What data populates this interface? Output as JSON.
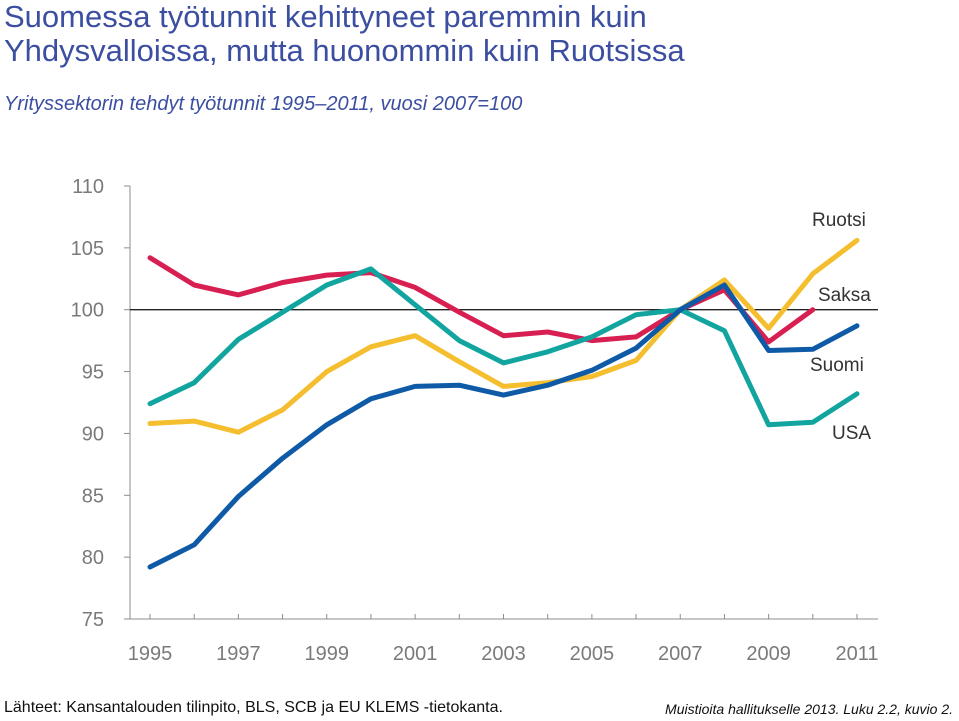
{
  "title_line1": "Suomessa työtunnit kehittyneet paremmin kuin",
  "title_line2": "Yhdysvalloissa, mutta huonommin kuin Ruotsissa",
  "subtitle": "Yrityssektorin tehdyt työtunnit 1995–2011, vuosi 2007=100",
  "source": "Lähteet: Kansantalouden tilinpito, BLS, SCB ja EU KLEMS -tietokanta.",
  "note": "Muistioita hallitukselle 2013. Luku 2.2, kuvio 2.",
  "chart_data": {
    "type": "line",
    "title": "Suomessa työtunnit kehittyneet paremmin kuin Yhdysvalloissa, mutta huonommin kuin Ruotsissa",
    "subtitle": "Yrityssektorin tehdyt työtunnit 1995–2011, vuosi 2007=100",
    "x": [
      1995,
      1996,
      1997,
      1998,
      1999,
      2000,
      2001,
      2002,
      2003,
      2004,
      2005,
      2006,
      2007,
      2008,
      2009,
      2010,
      2011
    ],
    "x_tick_labels": [
      "1995",
      "1997",
      "1999",
      "2001",
      "2003",
      "2005",
      "2007",
      "2009",
      "2011"
    ],
    "ylim": [
      75,
      110
    ],
    "y_ticks": [
      "75",
      "80",
      "85",
      "90",
      "95",
      "100",
      "105",
      "110"
    ],
    "reference_line": 100,
    "grid": false,
    "legend": "inline labels at right",
    "series": [
      {
        "name": "Ruotsi",
        "color": "#f5be2e",
        "values": [
          90.8,
          91.0,
          90.1,
          91.9,
          95.0,
          97.0,
          97.9,
          95.8,
          93.8,
          94.1,
          94.6,
          95.9,
          100.0,
          102.4,
          98.5,
          102.9,
          105.6
        ]
      },
      {
        "name": "Saksa",
        "color": "#d71f52",
        "values": [
          104.2,
          102.0,
          101.2,
          102.2,
          102.8,
          103.0,
          101.8,
          99.8,
          97.9,
          98.2,
          97.5,
          97.8,
          100.0,
          101.6,
          97.4,
          100.0,
          null
        ]
      },
      {
        "name": "Suomi",
        "color": "#12a5a0",
        "values": [
          92.4,
          94.1,
          97.6,
          99.8,
          102.0,
          103.3,
          100.4,
          97.5,
          95.7,
          96.6,
          97.8,
          99.6,
          100.0,
          98.3,
          90.7,
          90.9,
          93.2
        ]
      },
      {
        "name": "USA",
        "color": "#0e5aa7",
        "values": [
          79.2,
          81.0,
          84.9,
          88.0,
          90.7,
          92.8,
          93.8,
          93.9,
          93.1,
          93.9,
          95.1,
          96.9,
          100.0,
          102.0,
          96.7,
          96.8,
          98.7
        ]
      }
    ]
  }
}
